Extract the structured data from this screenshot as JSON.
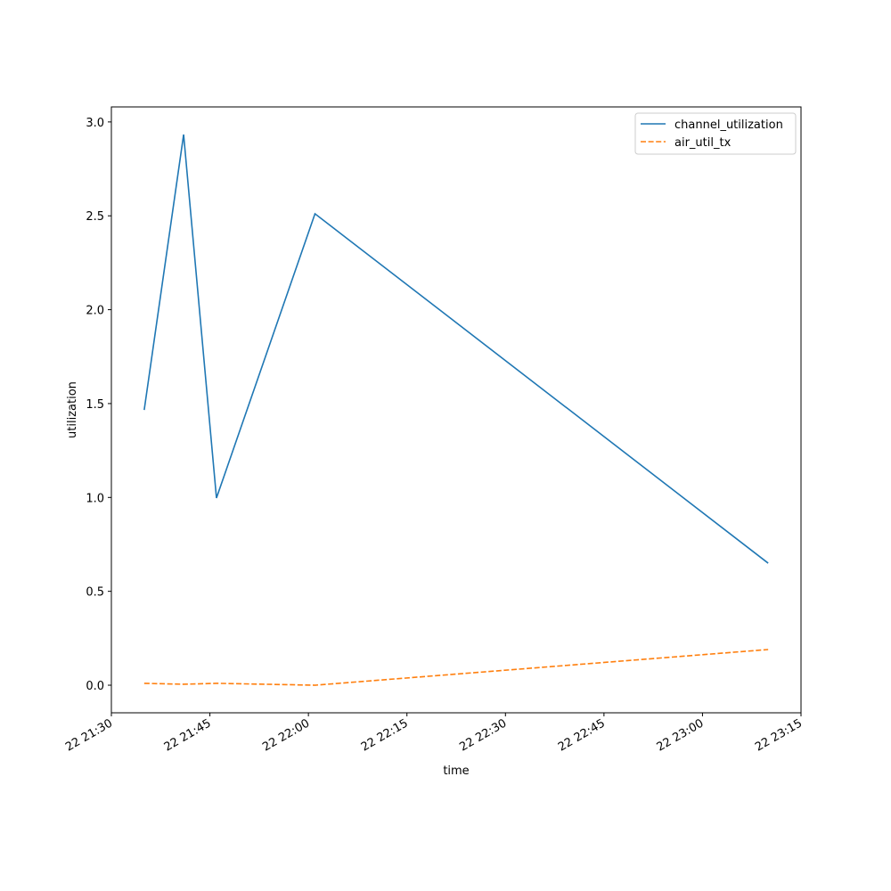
{
  "chart_data": {
    "type": "line",
    "x_label": "time",
    "y_label": "utilization",
    "x": [
      "22 21:35",
      "22 21:41",
      "22 21:46",
      "22 22:01",
      "22 23:10"
    ],
    "series": [
      {
        "name": "channel_utilization",
        "color": "#1f77b4",
        "dash": "solid",
        "values": [
          1.466,
          2.933,
          0.997,
          2.511,
          0.65
        ]
      },
      {
        "name": "air_util_tx",
        "color": "#ff7f0e",
        "dash": "dashed",
        "values": [
          0.01,
          0.005,
          0.01,
          0.0,
          0.19
        ]
      }
    ],
    "xlim": [
      "22 21:30",
      "22 23:15"
    ],
    "xticks": [
      "22 21:30",
      "22 21:45",
      "22 22:00",
      "22 22:15",
      "22 22:30",
      "22 22:45",
      "22 23:00",
      "22 23:15"
    ],
    "ylim": [
      -0.147,
      3.08
    ],
    "yticks": [
      {
        "value": 0,
        "label": "0.0"
      },
      {
        "value": 0.5,
        "label": "0.5"
      },
      {
        "value": 1,
        "label": "1.0"
      },
      {
        "value": 1.5,
        "label": "1.5"
      },
      {
        "value": 2,
        "label": "2.0"
      },
      {
        "value": 2.5,
        "label": "2.5"
      },
      {
        "value": 3,
        "label": "3.0"
      }
    ],
    "legend": "upper right"
  }
}
